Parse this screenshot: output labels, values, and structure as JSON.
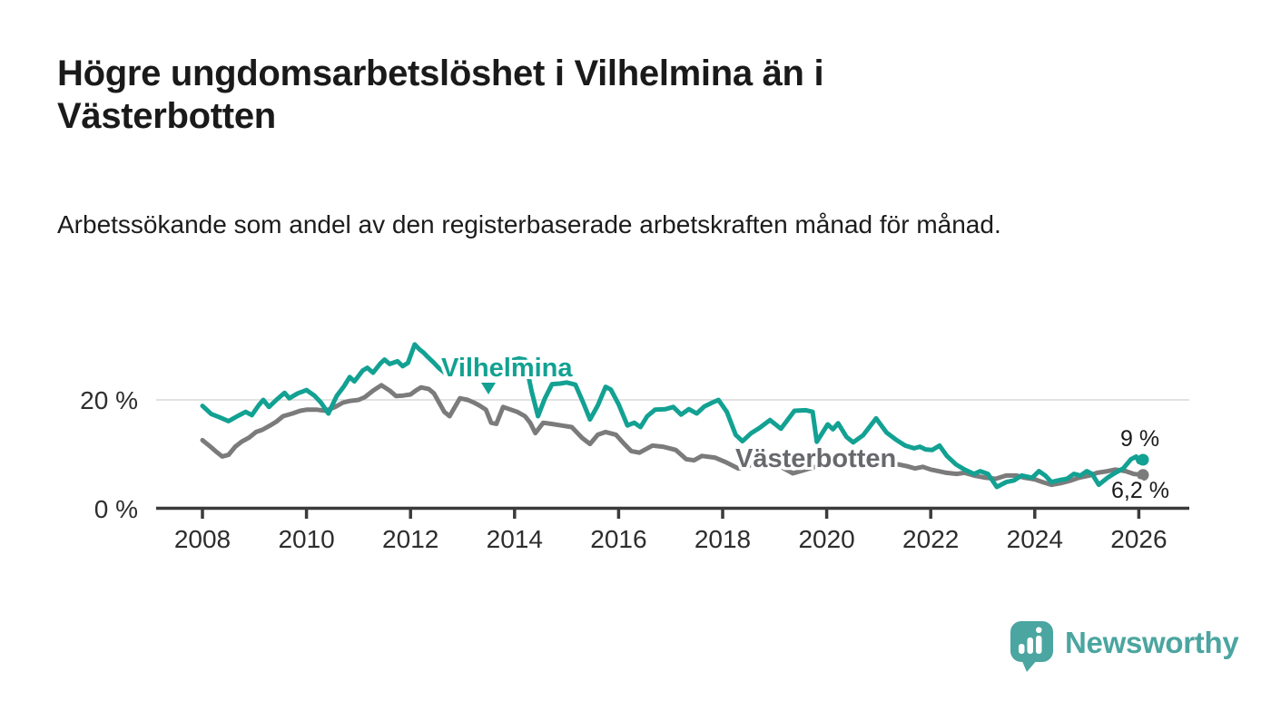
{
  "header": {
    "title": "Högre ungdomsarbetslöshet i Vilhelmina än i Västerbotten",
    "subtitle": "Arbetssökande som andel av den registerbaserade arbetskraften månad för månad."
  },
  "footer": {
    "brand": "Newsworthy"
  },
  "chart_data": {
    "type": "line",
    "title": "Högre ungdomsarbetslöshet i Vilhelmina än i Västerbotten",
    "subtitle": "Arbetssökande som andel av den registerbaserade arbetskraften månad för månad.",
    "unit": "%",
    "xlim": [
      2007.1,
      2027.0
    ],
    "ylim": [
      0,
      32
    ],
    "grid": "single horizontal gridline at 20%",
    "legend_position": "inline series labels on chart",
    "axis_color": "#3b3b3b",
    "grid_color": "#d9d9d9",
    "x_ticks": [
      2008,
      2010,
      2012,
      2014,
      2016,
      2018,
      2020,
      2022,
      2024,
      2026
    ],
    "y_ticks": [
      {
        "value": 0,
        "label": "0 %"
      },
      {
        "value": 20,
        "label": "20 %"
      }
    ],
    "series": [
      {
        "name": "Vilhelmina",
        "color": "#12a192",
        "end_label": "9 %",
        "end_value": 9.0,
        "points": [
          [
            2008.0,
            18.9
          ],
          [
            2008.17,
            17.4
          ],
          [
            2008.33,
            16.8
          ],
          [
            2008.5,
            16.1
          ],
          [
            2008.67,
            17.0
          ],
          [
            2008.83,
            17.8
          ],
          [
            2008.95,
            17.2
          ],
          [
            2009.08,
            19.0
          ],
          [
            2009.17,
            20.0
          ],
          [
            2009.28,
            18.7
          ],
          [
            2009.42,
            20.0
          ],
          [
            2009.58,
            21.3
          ],
          [
            2009.67,
            20.3
          ],
          [
            2009.83,
            21.2
          ],
          [
            2010.0,
            21.8
          ],
          [
            2010.15,
            20.8
          ],
          [
            2010.28,
            19.5
          ],
          [
            2010.42,
            17.5
          ],
          [
            2010.58,
            20.7
          ],
          [
            2010.72,
            22.5
          ],
          [
            2010.83,
            24.2
          ],
          [
            2010.92,
            23.4
          ],
          [
            2011.08,
            25.4
          ],
          [
            2011.17,
            25.9
          ],
          [
            2011.28,
            25.0
          ],
          [
            2011.42,
            26.7
          ],
          [
            2011.5,
            27.4
          ],
          [
            2011.6,
            26.6
          ],
          [
            2011.75,
            27.1
          ],
          [
            2011.85,
            26.2
          ],
          [
            2011.95,
            26.8
          ],
          [
            2012.08,
            30.2
          ],
          [
            2012.17,
            29.3
          ],
          [
            2012.25,
            28.7
          ],
          [
            2012.33,
            27.9
          ],
          [
            2012.45,
            26.8
          ],
          [
            2012.55,
            25.8
          ],
          [
            2012.67,
            24.9
          ],
          [
            2012.78,
            25.4
          ],
          [
            2012.92,
            26.1
          ],
          [
            2013.08,
            26.8
          ],
          [
            2013.25,
            27.2
          ],
          [
            2013.42,
            26.3
          ],
          [
            2013.58,
            26.0
          ],
          [
            2013.75,
            26.8
          ],
          [
            2013.92,
            27.2
          ],
          [
            2014.08,
            27.6
          ],
          [
            2014.2,
            27.4
          ],
          [
            2014.33,
            21.5
          ],
          [
            2014.45,
            17.0
          ],
          [
            2014.58,
            20.2
          ],
          [
            2014.72,
            22.9
          ],
          [
            2014.87,
            23.0
          ],
          [
            2015.0,
            23.2
          ],
          [
            2015.17,
            22.8
          ],
          [
            2015.32,
            19.5
          ],
          [
            2015.45,
            16.4
          ],
          [
            2015.6,
            19.0
          ],
          [
            2015.75,
            22.4
          ],
          [
            2015.85,
            21.9
          ],
          [
            2016.0,
            19.2
          ],
          [
            2016.17,
            15.3
          ],
          [
            2016.3,
            15.8
          ],
          [
            2016.42,
            15.0
          ],
          [
            2016.55,
            17.0
          ],
          [
            2016.7,
            18.2
          ],
          [
            2016.9,
            18.3
          ],
          [
            2017.05,
            18.7
          ],
          [
            2017.2,
            17.3
          ],
          [
            2017.35,
            18.3
          ],
          [
            2017.5,
            17.5
          ],
          [
            2017.65,
            18.8
          ],
          [
            2017.8,
            19.5
          ],
          [
            2017.92,
            20.0
          ],
          [
            2018.08,
            17.8
          ],
          [
            2018.25,
            13.6
          ],
          [
            2018.38,
            12.4
          ],
          [
            2018.55,
            13.9
          ],
          [
            2018.7,
            14.8
          ],
          [
            2018.91,
            16.3
          ],
          [
            2019.12,
            14.7
          ],
          [
            2019.38,
            18.0
          ],
          [
            2019.6,
            18.1
          ],
          [
            2019.73,
            17.8
          ],
          [
            2019.81,
            12.3
          ],
          [
            2020.02,
            15.5
          ],
          [
            2020.12,
            14.6
          ],
          [
            2020.22,
            15.7
          ],
          [
            2020.38,
            13.2
          ],
          [
            2020.51,
            12.2
          ],
          [
            2020.7,
            13.5
          ],
          [
            2020.95,
            16.6
          ],
          [
            2021.15,
            14.0
          ],
          [
            2021.33,
            12.7
          ],
          [
            2021.51,
            11.6
          ],
          [
            2021.68,
            11.1
          ],
          [
            2021.79,
            11.4
          ],
          [
            2021.9,
            10.9
          ],
          [
            2022.03,
            10.8
          ],
          [
            2022.17,
            11.6
          ],
          [
            2022.31,
            9.7
          ],
          [
            2022.49,
            8.1
          ],
          [
            2022.65,
            7.2
          ],
          [
            2022.83,
            6.4
          ],
          [
            2022.95,
            6.9
          ],
          [
            2023.1,
            6.4
          ],
          [
            2023.27,
            4.0
          ],
          [
            2023.45,
            4.9
          ],
          [
            2023.6,
            5.2
          ],
          [
            2023.75,
            6.1
          ],
          [
            2023.95,
            5.7
          ],
          [
            2024.08,
            6.9
          ],
          [
            2024.2,
            6.1
          ],
          [
            2024.32,
            4.9
          ],
          [
            2024.5,
            5.3
          ],
          [
            2024.62,
            5.5
          ],
          [
            2024.75,
            6.4
          ],
          [
            2024.88,
            6.1
          ],
          [
            2025.0,
            6.9
          ],
          [
            2025.1,
            6.4
          ],
          [
            2025.23,
            4.4
          ],
          [
            2025.4,
            5.7
          ],
          [
            2025.55,
            6.6
          ],
          [
            2025.7,
            7.4
          ],
          [
            2025.85,
            9.1
          ],
          [
            2025.95,
            9.6
          ],
          [
            2026.0,
            8.6
          ],
          [
            2026.08,
            9.0
          ]
        ]
      },
      {
        "name": "Västerbotten",
        "color": "#7b7b7b",
        "end_label": "6,2 %",
        "end_value": 6.2,
        "points": [
          [
            2008.0,
            12.6
          ],
          [
            2008.13,
            11.6
          ],
          [
            2008.25,
            10.6
          ],
          [
            2008.38,
            9.6
          ],
          [
            2008.5,
            9.9
          ],
          [
            2008.63,
            11.4
          ],
          [
            2008.75,
            12.3
          ],
          [
            2008.9,
            13.1
          ],
          [
            2009.03,
            14.1
          ],
          [
            2009.15,
            14.5
          ],
          [
            2009.3,
            15.3
          ],
          [
            2009.42,
            16.0
          ],
          [
            2009.55,
            17.0
          ],
          [
            2009.73,
            17.5
          ],
          [
            2009.88,
            18.0
          ],
          [
            2010.0,
            18.2
          ],
          [
            2010.2,
            18.2
          ],
          [
            2010.37,
            18.0
          ],
          [
            2010.55,
            18.7
          ],
          [
            2010.7,
            19.5
          ],
          [
            2010.83,
            19.8
          ],
          [
            2011.0,
            20.0
          ],
          [
            2011.12,
            20.5
          ],
          [
            2011.28,
            21.7
          ],
          [
            2011.44,
            22.7
          ],
          [
            2011.6,
            21.7
          ],
          [
            2011.72,
            20.7
          ],
          [
            2011.86,
            20.8
          ],
          [
            2012.0,
            21.0
          ],
          [
            2012.1,
            21.7
          ],
          [
            2012.2,
            22.3
          ],
          [
            2012.35,
            22.0
          ],
          [
            2012.45,
            21.2
          ],
          [
            2012.55,
            19.5
          ],
          [
            2012.65,
            17.8
          ],
          [
            2012.75,
            17.0
          ],
          [
            2012.87,
            19.0
          ],
          [
            2012.95,
            20.3
          ],
          [
            2013.1,
            20.0
          ],
          [
            2013.22,
            19.5
          ],
          [
            2013.32,
            19.0
          ],
          [
            2013.45,
            18.2
          ],
          [
            2013.55,
            15.8
          ],
          [
            2013.65,
            15.6
          ],
          [
            2013.78,
            18.7
          ],
          [
            2013.9,
            18.3
          ],
          [
            2014.05,
            17.8
          ],
          [
            2014.2,
            17.0
          ],
          [
            2014.3,
            15.8
          ],
          [
            2014.4,
            13.9
          ],
          [
            2014.55,
            15.8
          ],
          [
            2014.7,
            15.6
          ],
          [
            2014.9,
            15.3
          ],
          [
            2015.1,
            15.0
          ],
          [
            2015.3,
            13.0
          ],
          [
            2015.45,
            11.9
          ],
          [
            2015.6,
            13.6
          ],
          [
            2015.75,
            14.1
          ],
          [
            2015.95,
            13.6
          ],
          [
            2016.1,
            12.0
          ],
          [
            2016.24,
            10.6
          ],
          [
            2016.4,
            10.3
          ],
          [
            2016.65,
            11.6
          ],
          [
            2016.85,
            11.4
          ],
          [
            2017.1,
            10.8
          ],
          [
            2017.3,
            9.1
          ],
          [
            2017.45,
            8.9
          ],
          [
            2017.6,
            9.7
          ],
          [
            2017.85,
            9.4
          ],
          [
            2018.05,
            8.6
          ],
          [
            2018.3,
            7.4
          ],
          [
            2018.5,
            7.9
          ],
          [
            2018.7,
            8.4
          ],
          [
            2018.9,
            8.6
          ],
          [
            2019.1,
            7.8
          ],
          [
            2019.35,
            6.5
          ],
          [
            2019.6,
            7.2
          ],
          [
            2019.85,
            7.9
          ],
          [
            2020.1,
            8.4
          ],
          [
            2020.35,
            9.6
          ],
          [
            2020.6,
            9.5
          ],
          [
            2020.85,
            9.2
          ],
          [
            2021.1,
            8.8
          ],
          [
            2021.35,
            8.2
          ],
          [
            2021.55,
            7.8
          ],
          [
            2021.7,
            7.4
          ],
          [
            2021.85,
            7.7
          ],
          [
            2022.0,
            7.2
          ],
          [
            2022.15,
            6.9
          ],
          [
            2022.3,
            6.6
          ],
          [
            2022.5,
            6.4
          ],
          [
            2022.65,
            6.6
          ],
          [
            2022.83,
            6.1
          ],
          [
            2023.05,
            5.7
          ],
          [
            2023.25,
            5.5
          ],
          [
            2023.45,
            6.1
          ],
          [
            2023.65,
            6.1
          ],
          [
            2023.8,
            5.7
          ],
          [
            2024.0,
            5.4
          ],
          [
            2024.15,
            4.9
          ],
          [
            2024.32,
            4.4
          ],
          [
            2024.5,
            4.7
          ],
          [
            2024.7,
            5.2
          ],
          [
            2024.85,
            5.7
          ],
          [
            2025.05,
            6.1
          ],
          [
            2025.2,
            6.6
          ],
          [
            2025.4,
            6.9
          ],
          [
            2025.55,
            7.2
          ],
          [
            2025.75,
            6.9
          ],
          [
            2025.9,
            6.4
          ],
          [
            2026.08,
            6.2
          ]
        ]
      }
    ]
  }
}
